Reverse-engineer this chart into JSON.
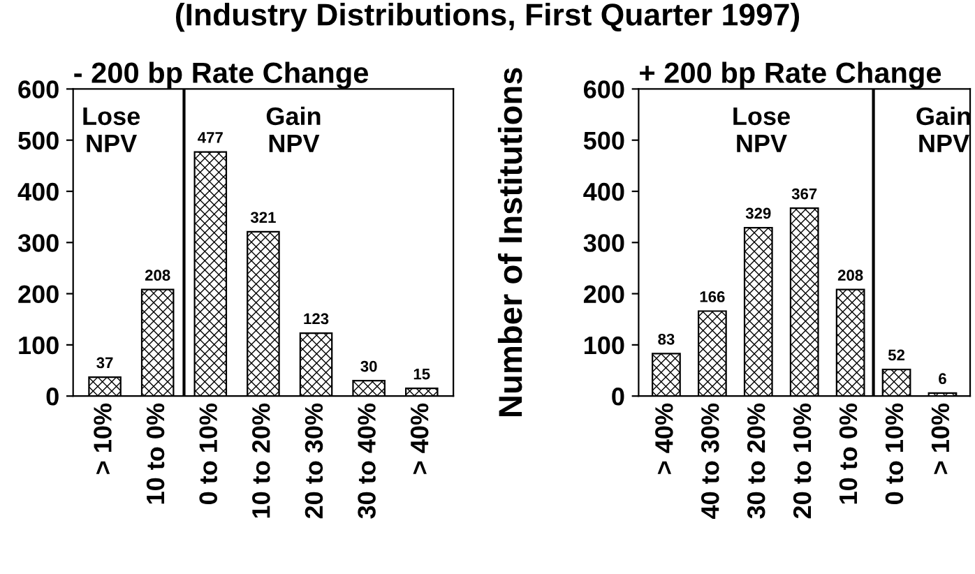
{
  "chart_data": [
    {
      "type": "bar",
      "title": "(Industry Distributions, First Quarter 1997)",
      "subtitle": "- 200 bp Rate Change",
      "categories": [
        "> 10%",
        "10 to 0%",
        "0 to 10%",
        "10 to 20%",
        "20 to 30%",
        "30 to 40%",
        "> 40%"
      ],
      "values": [
        37,
        208,
        477,
        321,
        123,
        30,
        15
      ],
      "color": "#000000",
      "data_labels": true,
      "ylim": [
        0,
        600
      ],
      "yticks": [
        0,
        100,
        200,
        300,
        400,
        500,
        600
      ],
      "grid": false,
      "annotations": [
        "Lose\nNPV",
        "Gain\nNPV"
      ]
    },
    {
      "type": "bar",
      "subtitle": "+ 200 bp Rate Change",
      "ylabel": "Number of Institutions",
      "categories": [
        "> 40%",
        "40 to 30%",
        "30 to 20%",
        "20 to 10%",
        "10 to 0%",
        "0 to 10%",
        "> 10%"
      ],
      "values": [
        83,
        166,
        329,
        367,
        208,
        52,
        6
      ],
      "color": "#000000",
      "data_labels": true,
      "ylim": [
        0,
        600
      ],
      "yticks": [
        0,
        100,
        200,
        300,
        400,
        500,
        600
      ],
      "grid": false,
      "annotations": [
        "Lose\nNPV",
        "Gain\nNPV"
      ]
    }
  ]
}
